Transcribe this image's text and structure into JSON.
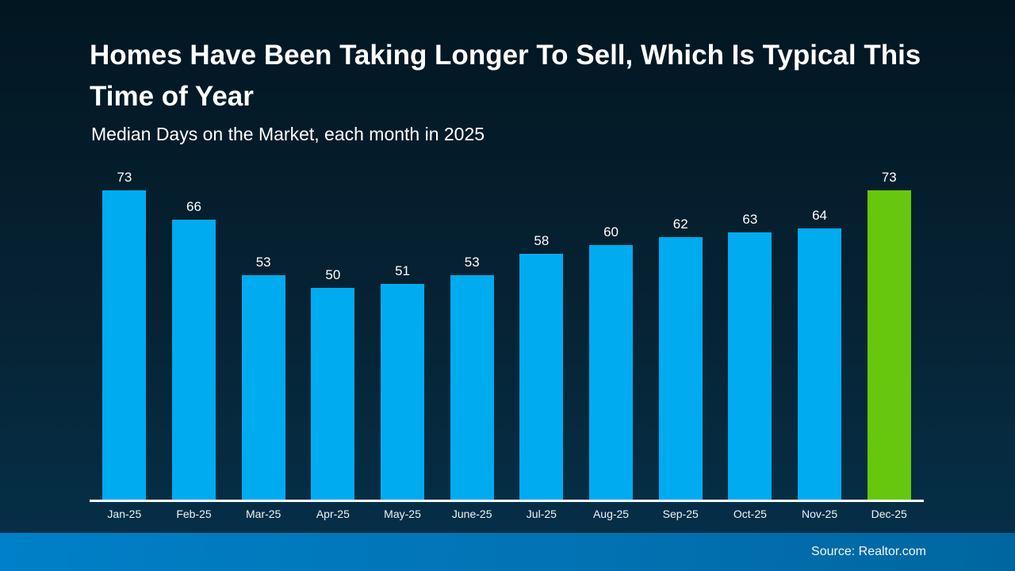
{
  "slide": {
    "title": "Homes Have Been Taking Longer To Sell, Which Is Typical This Time of Year",
    "subtitle": "Median Days on the Market, each month in 2025",
    "source": "Source: Realtor.com"
  },
  "colors": {
    "background_top": "#021621",
    "background_bottom": "#053049",
    "bar": "#00abf0",
    "bar_highlight": "#66c70e",
    "axis_line": "#ffffff",
    "text": "#ffffff",
    "footer_gradient_left": "#0080c8",
    "footer_gradient_right": "#00669f"
  },
  "chart_data": {
    "type": "bar",
    "title": "Median Days on the Market, each month in 2025",
    "categories": [
      "Jan-25",
      "Feb-25",
      "Mar-25",
      "Apr-25",
      "May-25",
      "June-25",
      "Jul-25",
      "Aug-25",
      "Sep-25",
      "Oct-25",
      "Nov-25",
      "Dec-25"
    ],
    "values": [
      73,
      66,
      53,
      50,
      51,
      53,
      58,
      60,
      62,
      63,
      64,
      73
    ],
    "xlabel": "",
    "ylabel": "Median days on the market",
    "ylim": [
      0,
      73
    ],
    "highlight_index": 11,
    "data_labels": true,
    "grid": false,
    "legend": false
  }
}
